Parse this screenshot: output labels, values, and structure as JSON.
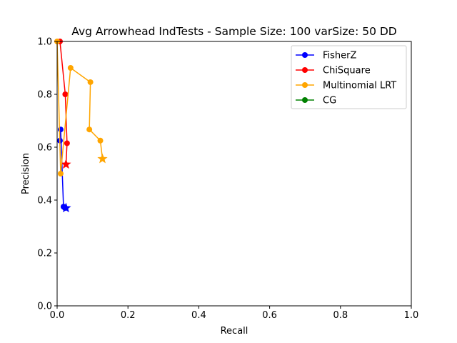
{
  "chart_data": {
    "type": "line",
    "title": "Avg Arrowhead IndTests - Sample Size: 100 varSize: 50 DD",
    "xlabel": "Recall",
    "ylabel": "Precision",
    "xlim": [
      0,
      1
    ],
    "ylim": [
      0,
      1
    ],
    "xticks": [
      "0.0",
      "0.2",
      "0.4",
      "0.6",
      "0.8",
      "1.0"
    ],
    "yticks": [
      "0.0",
      "0.2",
      "0.4",
      "0.6",
      "0.8",
      "1.0"
    ],
    "grid": false,
    "legend_position": "top-right",
    "series": [
      {
        "name": "FisherZ",
        "color": "#0000ff",
        "points": [
          [
            0.008,
            0.625
          ],
          [
            0.01,
            0.667
          ],
          [
            0.018,
            0.375
          ],
          [
            0.022,
            0.37
          ]
        ],
        "final": [
          0.025,
          0.37
        ]
      },
      {
        "name": "ChiSquare",
        "color": "#ff0000",
        "points": [
          [
            0.008,
            1.0
          ],
          [
            0.023,
            0.8
          ],
          [
            0.028,
            0.615
          ]
        ],
        "final": [
          0.025,
          0.535
        ]
      },
      {
        "name": "Multinomial LRT",
        "color": "#ffa500",
        "points": [
          [
            0.0,
            1.0
          ],
          [
            0.01,
            0.5
          ],
          [
            0.038,
            0.9
          ],
          [
            0.094,
            0.846
          ],
          [
            0.091,
            0.667
          ],
          [
            0.122,
            0.625
          ]
        ],
        "final": [
          0.128,
          0.556
        ]
      },
      {
        "name": "CG",
        "color": "#008000",
        "points": [],
        "final": null
      }
    ]
  }
}
